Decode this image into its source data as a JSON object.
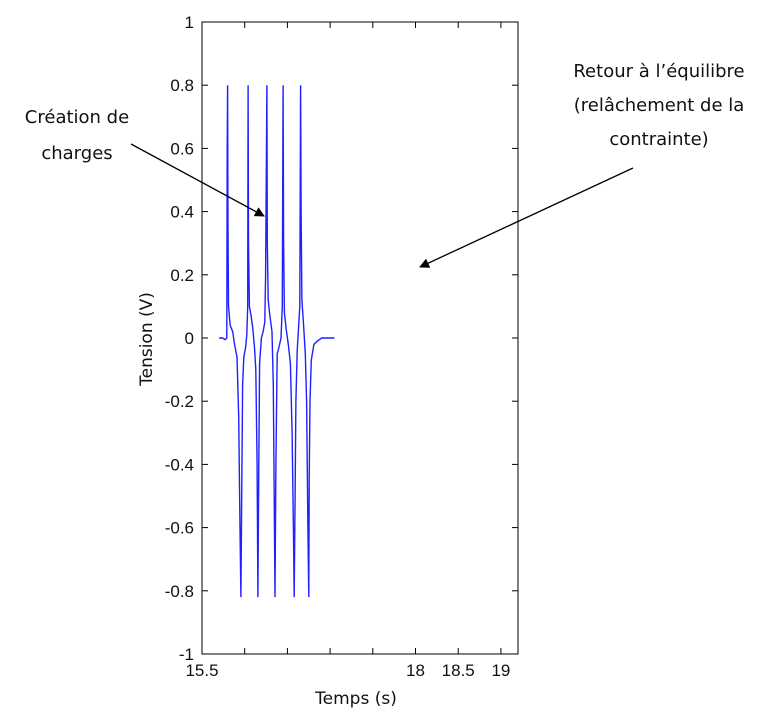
{
  "chart_data": {
    "type": "line",
    "title": "",
    "xlabel": "Temps (s)",
    "ylabel": "Tension (V)",
    "xlim": [
      15.5,
      19.2
    ],
    "ylim": [
      -1,
      1
    ],
    "xticks": [
      15.5,
      16,
      16.5,
      17,
      17.5,
      18,
      18.5,
      19
    ],
    "xtick_labels": [
      "15.5",
      "",
      "",
      "",
      "",
      "18",
      "18.5",
      "19"
    ],
    "yticks": [
      -1,
      -0.8,
      -0.6,
      -0.4,
      -0.2,
      0,
      0.2,
      0.4,
      0.6,
      0.8,
      1
    ],
    "ytick_labels": [
      "-1",
      "-0.8",
      "-0.6",
      "-0.4",
      "-0.2",
      "0",
      "0.2",
      "0.4",
      "0.6",
      "0.8",
      "1"
    ],
    "grid": false,
    "series_color": "#1f1fff",
    "series": [
      {
        "x": [
          15.7,
          15.75,
          15.78,
          15.8,
          15.81,
          15.82,
          15.83,
          15.85,
          15.9,
          15.93,
          15.95,
          15.97,
          15.98,
          16.0,
          16.02,
          16.04,
          16.05,
          16.06,
          16.08,
          16.1,
          16.13,
          16.15,
          16.16,
          16.18,
          16.2,
          16.24,
          16.26,
          16.27,
          16.29,
          16.32,
          16.34,
          16.35,
          16.36,
          16.38,
          16.42,
          16.44,
          16.45,
          16.46,
          16.48,
          16.52,
          16.55,
          16.57,
          16.58,
          16.59,
          16.61,
          16.63,
          16.65,
          16.66,
          16.68,
          16.72,
          16.74,
          16.75,
          16.76,
          16.78,
          16.82,
          16.9,
          17.0,
          17.05
        ],
        "y": [
          0.0,
          0.0,
          -0.01,
          0.0,
          0.8,
          0.2,
          0.05,
          0.02,
          -0.02,
          -0.1,
          -0.3,
          -0.82,
          -0.3,
          -0.05,
          0.02,
          0.05,
          0.8,
          0.1,
          0.05,
          0.0,
          -0.1,
          -0.82,
          -0.1,
          0.0,
          0.02,
          0.05,
          0.8,
          0.12,
          0.05,
          0.0,
          -0.82,
          -0.2,
          0.0,
          0.0,
          0.05,
          0.8,
          0.1,
          0.03,
          0.0,
          -0.1,
          -0.3,
          -0.82,
          -0.1,
          0.0,
          0.05,
          0.8,
          0.2,
          0.05,
          0.0,
          -0.1,
          -0.3,
          -0.82,
          -0.35,
          -0.05,
          -0.01,
          0.0,
          0.0,
          0.0
        ],
        "points": [
          [
            15.7,
            0.0
          ],
          [
            15.74,
            0.0
          ],
          [
            15.77,
            -0.005
          ],
          [
            15.79,
            0.0
          ],
          [
            15.795,
            0.6
          ],
          [
            15.8,
            0.8
          ],
          [
            15.805,
            0.35
          ],
          [
            15.81,
            0.1
          ],
          [
            15.83,
            0.04
          ],
          [
            15.86,
            0.02
          ],
          [
            15.88,
            -0.02
          ],
          [
            15.91,
            -0.06
          ],
          [
            15.93,
            -0.25
          ],
          [
            15.945,
            -0.6
          ],
          [
            15.955,
            -0.82
          ],
          [
            15.965,
            -0.5
          ],
          [
            15.975,
            -0.15
          ],
          [
            15.99,
            -0.06
          ],
          [
            16.01,
            -0.03
          ],
          [
            16.025,
            0.01
          ],
          [
            16.035,
            0.1
          ],
          [
            16.04,
            0.8
          ],
          [
            16.045,
            0.3
          ],
          [
            16.055,
            0.1
          ],
          [
            16.075,
            0.07
          ],
          [
            16.095,
            0.03
          ],
          [
            16.115,
            -0.03
          ],
          [
            16.13,
            -0.1
          ],
          [
            16.145,
            -0.4
          ],
          [
            16.155,
            -0.82
          ],
          [
            16.165,
            -0.4
          ],
          [
            16.175,
            -0.08
          ],
          [
            16.195,
            0.0
          ],
          [
            16.215,
            0.02
          ],
          [
            16.235,
            0.05
          ],
          [
            16.245,
            0.2
          ],
          [
            16.26,
            0.8
          ],
          [
            16.265,
            0.3
          ],
          [
            16.275,
            0.12
          ],
          [
            16.295,
            0.07
          ],
          [
            16.32,
            0.02
          ],
          [
            16.335,
            -0.15
          ],
          [
            16.345,
            -0.5
          ],
          [
            16.355,
            -0.82
          ],
          [
            16.365,
            -0.4
          ],
          [
            16.38,
            -0.05
          ],
          [
            16.4,
            -0.03
          ],
          [
            16.425,
            0.0
          ],
          [
            16.44,
            0.1
          ],
          [
            16.45,
            0.8
          ],
          [
            16.455,
            0.3
          ],
          [
            16.465,
            0.08
          ],
          [
            16.485,
            0.03
          ],
          [
            16.51,
            -0.02
          ],
          [
            16.535,
            -0.08
          ],
          [
            16.555,
            -0.3
          ],
          [
            16.57,
            -0.6
          ],
          [
            16.58,
            -0.82
          ],
          [
            16.59,
            -0.5
          ],
          [
            16.6,
            -0.2
          ],
          [
            16.615,
            -0.04
          ],
          [
            16.63,
            0.03
          ],
          [
            16.645,
            0.1
          ],
          [
            16.655,
            0.8
          ],
          [
            16.66,
            0.4
          ],
          [
            16.67,
            0.12
          ],
          [
            16.69,
            0.04
          ],
          [
            16.71,
            -0.05
          ],
          [
            16.725,
            -0.2
          ],
          [
            16.74,
            -0.6
          ],
          [
            16.75,
            -0.82
          ],
          [
            16.755,
            -0.45
          ],
          [
            16.765,
            -0.2
          ],
          [
            16.78,
            -0.07
          ],
          [
            16.81,
            -0.02
          ],
          [
            16.85,
            -0.01
          ],
          [
            16.9,
            0.0
          ],
          [
            16.95,
            0.0
          ],
          [
            17.0,
            0.0
          ],
          [
            17.05,
            0.0
          ]
        ]
      }
    ],
    "annotations": [
      {
        "lines": [
          "Création de",
          "charges"
        ]
      },
      {
        "lines": [
          "Retour à l’équilibre",
          "(relâchement de la",
          "contrainte)"
        ]
      }
    ]
  }
}
